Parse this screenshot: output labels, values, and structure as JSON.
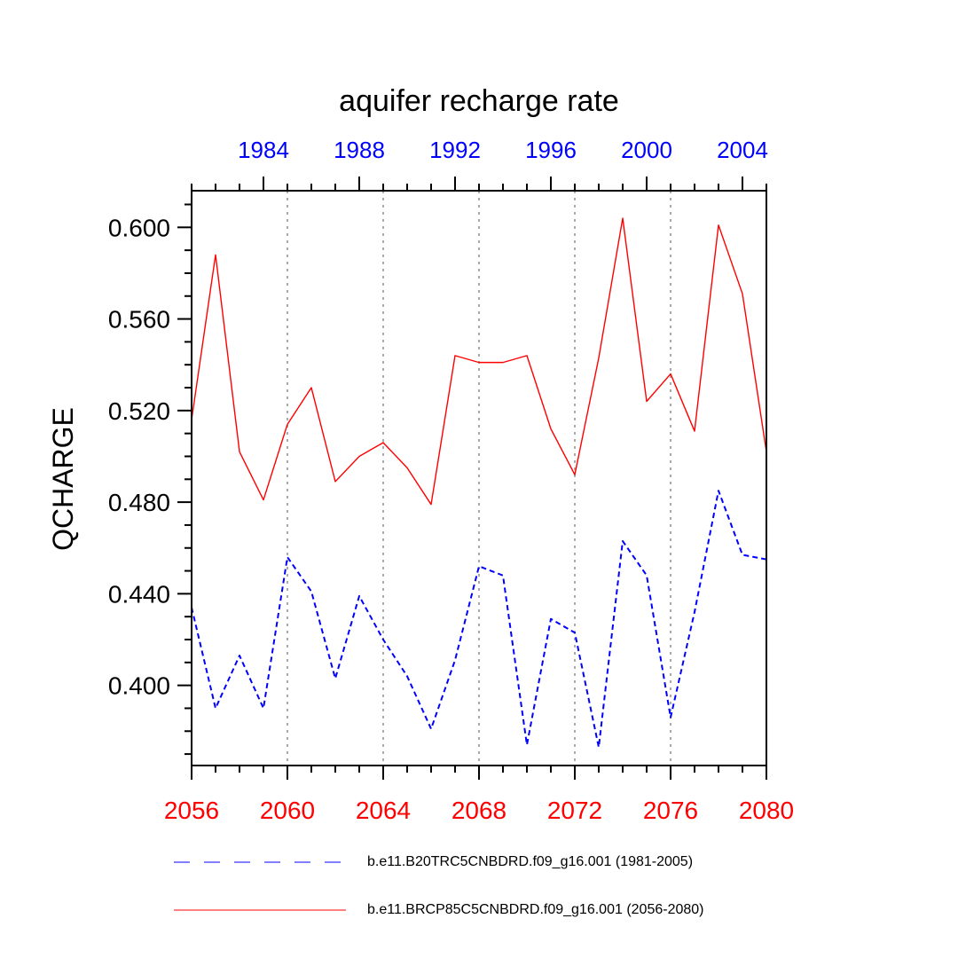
{
  "chart_data": {
    "type": "line",
    "title": "aquifer recharge rate",
    "xlabel": "",
    "ylabel": "QCHARGE",
    "ylim": [
      0.365,
      0.616
    ],
    "yticks": [
      "0.400",
      "0.440",
      "0.480",
      "0.520",
      "0.560",
      "0.600"
    ],
    "bottom_axis": {
      "range": [
        2056,
        2080
      ],
      "ticks": [
        "2056",
        "2060",
        "2064",
        "2068",
        "2072",
        "2076",
        "2080"
      ],
      "color": "#ff0000"
    },
    "top_axis": {
      "range": [
        1981,
        2005
      ],
      "ticks": [
        "1984",
        "1988",
        "1992",
        "1996",
        "2000",
        "2004"
      ],
      "color": "#0000ff"
    },
    "grid": "dotted vertical lines at bottom-axis ticks",
    "series": [
      {
        "name": "b.e11.BRCP85C5CNBDRD.f09_g16.001 (2056-2080)",
        "color": "#ff0000",
        "dash": "solid",
        "axis": "bottom",
        "x": [
          2056,
          2057,
          2058,
          2059,
          2060,
          2061,
          2062,
          2063,
          2064,
          2065,
          2066,
          2067,
          2068,
          2069,
          2070,
          2071,
          2072,
          2073,
          2074,
          2075,
          2076,
          2077,
          2078,
          2079,
          2080
        ],
        "values": [
          0.516,
          0.588,
          0.502,
          0.481,
          0.514,
          0.53,
          0.489,
          0.5,
          0.506,
          0.495,
          0.479,
          0.544,
          0.541,
          0.541,
          0.544,
          0.512,
          0.492,
          0.543,
          0.604,
          0.524,
          0.536,
          0.511,
          0.601,
          0.571,
          0.502
        ]
      },
      {
        "name": "b.e11.B20TRC5CNBDRD.f09_g16.001 (1981-2005)",
        "color": "#0000ff",
        "dash": "dashed",
        "axis": "top",
        "x": [
          1981,
          1982,
          1983,
          1984,
          1985,
          1986,
          1987,
          1988,
          1989,
          1990,
          1991,
          1992,
          1993,
          1994,
          1995,
          1996,
          1997,
          1998,
          1999,
          2000,
          2001,
          2002,
          2003,
          2004,
          2005
        ],
        "values": [
          0.434,
          0.39,
          0.413,
          0.39,
          0.456,
          0.441,
          0.403,
          0.439,
          0.42,
          0.404,
          0.381,
          0.411,
          0.452,
          0.448,
          0.374,
          0.429,
          0.423,
          0.373,
          0.463,
          0.448,
          0.386,
          0.432,
          0.485,
          0.457,
          0.455
        ]
      }
    ],
    "legend": [
      {
        "label": "b.e11.B20TRC5CNBDRD.f09_g16.001 (1981-2005)",
        "color": "#0000ff",
        "dash": "dashed"
      },
      {
        "label": "b.e11.BRCP85C5CNBDRD.f09_g16.001 (2056-2080)",
        "color": "#ff0000",
        "dash": "solid"
      }
    ],
    "legend_position": "bottom"
  }
}
